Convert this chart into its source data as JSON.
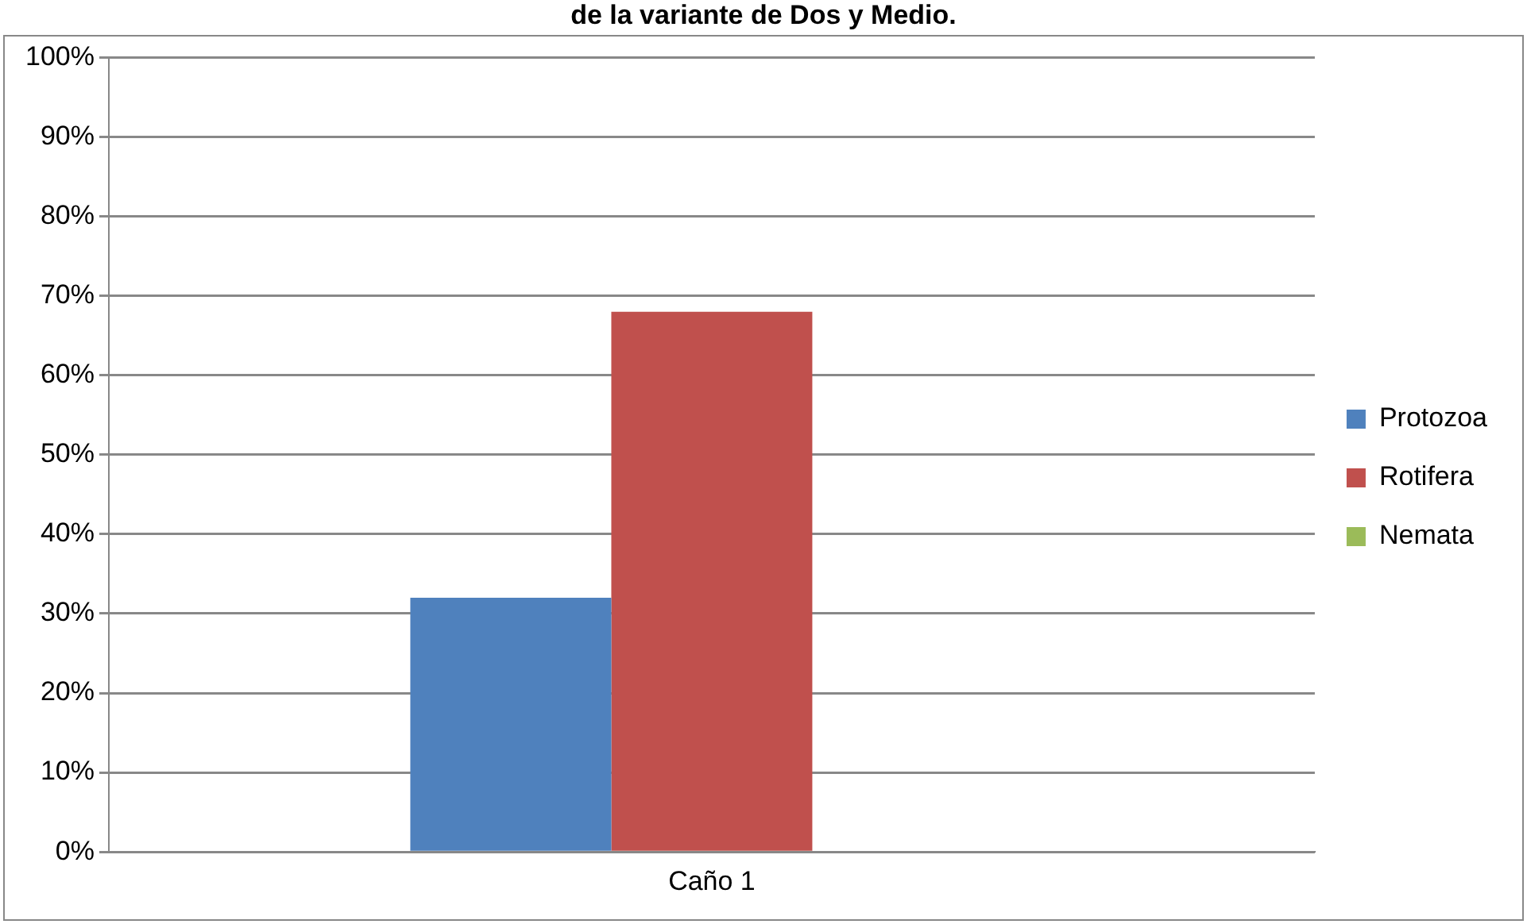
{
  "chart_data": {
    "type": "bar",
    "title": "de la variante de Dos y Medio.",
    "categories": [
      "Caño 1"
    ],
    "series": [
      {
        "name": "Protozoa",
        "color": "#4f81bd",
        "values": [
          32
        ]
      },
      {
        "name": "Rotifera",
        "color": "#c0504d",
        "values": [
          68
        ]
      },
      {
        "name": "Nemata",
        "color": "#9bbb59",
        "values": [
          0
        ]
      }
    ],
    "ylim": [
      0,
      100
    ],
    "yticks": [
      {
        "value": 0,
        "label": "0%"
      },
      {
        "value": 10,
        "label": "10%"
      },
      {
        "value": 20,
        "label": "20%"
      },
      {
        "value": 30,
        "label": "30%"
      },
      {
        "value": 40,
        "label": "40%"
      },
      {
        "value": 50,
        "label": "50%"
      },
      {
        "value": 60,
        "label": "60%"
      },
      {
        "value": 70,
        "label": "70%"
      },
      {
        "value": 80,
        "label": "80%"
      },
      {
        "value": 90,
        "label": "90%"
      },
      {
        "value": 100,
        "label": "100%"
      }
    ],
    "grid": "y",
    "legend": "right"
  }
}
